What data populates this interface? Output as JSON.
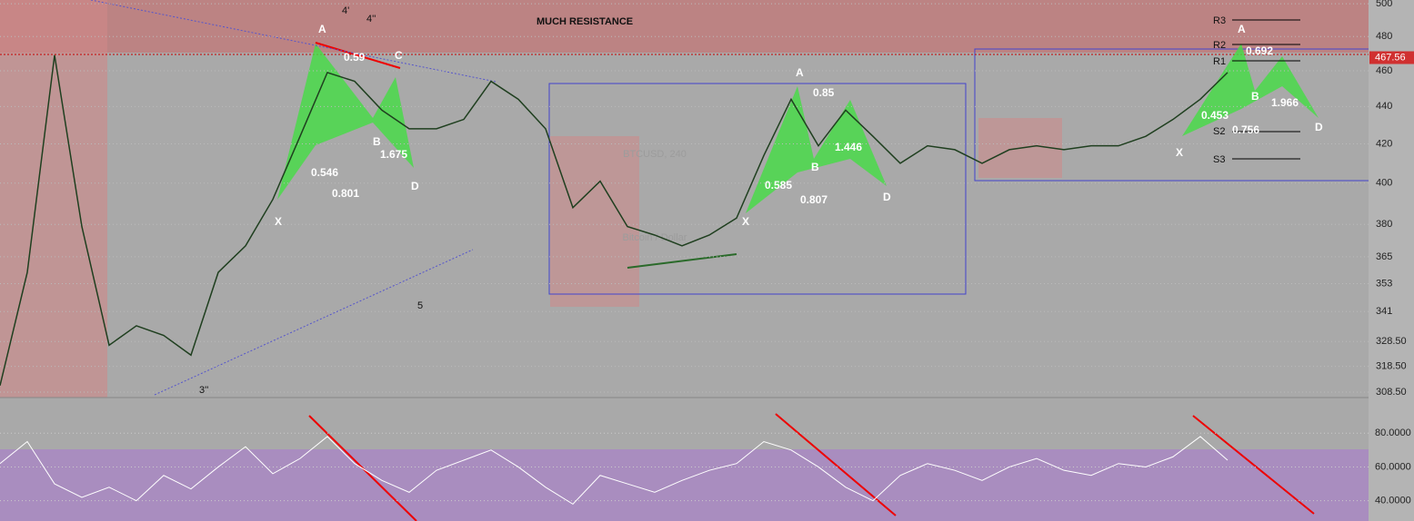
{
  "chart_data": {
    "type": "line",
    "log_scale": true,
    "watermark": "BTCUSD, 240",
    "watermark_subtitle": "Bitcoin / Dollar",
    "last_price": 467.56,
    "ylim": [
      306.4,
      502.3
    ],
    "yticks": [
      500,
      480,
      460,
      440,
      420,
      400,
      380,
      365,
      353,
      341,
      {
        "value": 328.5,
        "label": "328.50"
      },
      {
        "value": 318.5,
        "label": "318.50"
      },
      {
        "value": 308.5,
        "label": "308.50"
      }
    ],
    "grid": true,
    "series": [
      {
        "color": "#1f3f1f",
        "values": [
          311,
          358,
          469,
          379,
          327,
          335,
          331,
          323,
          358,
          370,
          392,
          424,
          459,
          454,
          438,
          428,
          428,
          433,
          454,
          444,
          428,
          388,
          401,
          379,
          375,
          370,
          375,
          383,
          414,
          444,
          419,
          438,
          424,
          410,
          419,
          417,
          410,
          417,
          419,
          417,
          419,
          419,
          424,
          433,
          444,
          459
        ]
      }
    ],
    "rsi": {
      "color": "#ffffff",
      "ylim": [
        28,
        100
      ],
      "yticks": [
        {
          "value": 80,
          "label": "80.0000"
        },
        {
          "value": 60,
          "label": "60.0000"
        },
        {
          "value": 40,
          "label": "40.0000"
        }
      ],
      "values": [
        62,
        75,
        50,
        42,
        48,
        40,
        55,
        47,
        60,
        72,
        56,
        65,
        78,
        62,
        52,
        45,
        58,
        64,
        70,
        60,
        48,
        38,
        55,
        50,
        45,
        52,
        58,
        62,
        75,
        70,
        60,
        48,
        40,
        55,
        62,
        58,
        52,
        60,
        65,
        58,
        55,
        62,
        60,
        66,
        78,
        64
      ]
    },
    "annotations": [
      "MUCH RESISTANCE",
      "A",
      "0.59",
      "C",
      "B",
      "1.675",
      "0.546",
      "0.801",
      "D",
      "X",
      "A",
      "0.85",
      "B",
      "1.446",
      "0.585",
      "0.807",
      "D",
      "X",
      "A",
      "0.692",
      "B",
      "1.966",
      "0.453",
      "0.756",
      "X",
      "D",
      "R3",
      "R2",
      "R1",
      "S2",
      "S3",
      "4'",
      "4''",
      "5",
      "3''"
    ]
  }
}
